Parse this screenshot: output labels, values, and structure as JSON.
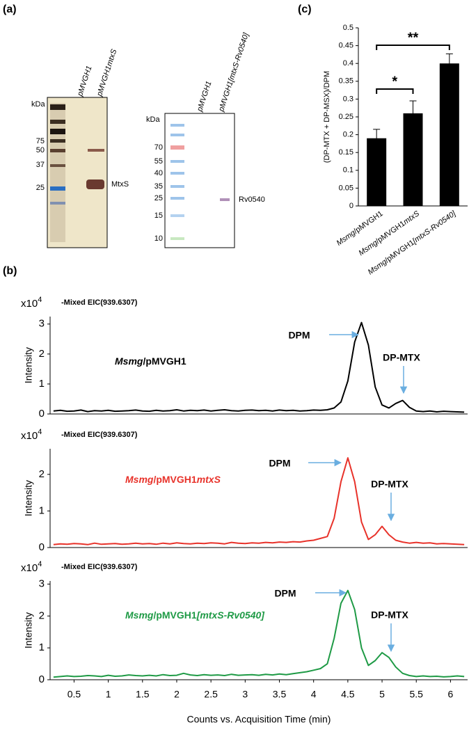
{
  "panel_labels": [
    "(a)",
    "(b)",
    "(c)"
  ],
  "gels": [
    {
      "marker_unit": "kDa",
      "markers": [
        75,
        50,
        37,
        25
      ],
      "lanes": [
        "pMVGH1",
        "pMVGH1mtxS"
      ],
      "band_label": "MtxS"
    },
    {
      "marker_unit": "kDa",
      "markers": [
        70,
        55,
        40,
        35,
        25,
        15,
        10
      ],
      "lanes": [
        "pMVGH1",
        "pMVGH1[mtxS-Rv0540]"
      ],
      "band_label": "Rv0540"
    }
  ],
  "chart_data": [
    {
      "type": "bar",
      "y_label": "(DP-MTX + DP-MSX)/DPM",
      "categories": [
        [
          {
            "text": "Msmg",
            "italic": true
          },
          {
            "text": "/pMVGH1",
            "italic": false
          }
        ],
        [
          {
            "text": "Msmg",
            "italic": true
          },
          {
            "text": "/pMVGH1",
            "italic": false
          },
          {
            "text": "mtxS",
            "italic": true
          }
        ],
        [
          {
            "text": "Msmg",
            "italic": true
          },
          {
            "text": "/pMVGH1",
            "italic": false
          },
          {
            "text": "[mtxS-Rv0540]",
            "italic": true
          }
        ]
      ],
      "values": [
        0.19,
        0.26,
        0.4
      ],
      "errors": [
        0.025,
        0.035,
        0.027
      ],
      "color": "#000000",
      "annotations": [
        "*",
        "**"
      ],
      "ylim": [
        0,
        0.5
      ],
      "yticks": [
        0,
        0.05,
        0.1,
        0.15,
        0.2,
        0.25,
        0.3,
        0.35,
        0.4,
        0.45,
        0.5
      ]
    },
    {
      "type": "line",
      "subtitle": "-Mixed EIC(939.6307)",
      "y_label": "Intensity",
      "y_scale_label": "x10",
      "y_scale_exponent": "4",
      "sample_label": [
        {
          "text": "Msmg",
          "italic": true
        },
        {
          "text": "/pMVGH1",
          "italic": false
        }
      ],
      "annotations": [
        "DPM",
        "DP-MTX"
      ],
      "color": "#000000",
      "x": [
        0.2,
        0.3,
        0.4,
        0.5,
        0.6,
        0.7,
        0.8,
        0.9,
        1.0,
        1.1,
        1.2,
        1.3,
        1.4,
        1.5,
        1.6,
        1.7,
        1.8,
        1.9,
        2.0,
        2.1,
        2.2,
        2.3,
        2.4,
        2.5,
        2.6,
        2.7,
        2.8,
        2.9,
        3.0,
        3.1,
        3.2,
        3.3,
        3.4,
        3.5,
        3.6,
        3.7,
        3.8,
        3.9,
        4.0,
        4.1,
        4.2,
        4.3,
        4.4,
        4.5,
        4.6,
        4.7,
        4.8,
        4.9,
        5.0,
        5.1,
        5.2,
        5.3,
        5.4,
        5.5,
        5.6,
        5.7,
        5.8,
        5.9,
        6.0,
        6.1,
        6.2
      ],
      "values": [
        0.1,
        0.12,
        0.09,
        0.1,
        0.13,
        0.08,
        0.11,
        0.1,
        0.12,
        0.09,
        0.1,
        0.11,
        0.13,
        0.1,
        0.09,
        0.12,
        0.1,
        0.11,
        0.14,
        0.1,
        0.12,
        0.11,
        0.13,
        0.1,
        0.12,
        0.14,
        0.11,
        0.1,
        0.12,
        0.13,
        0.11,
        0.12,
        0.1,
        0.13,
        0.11,
        0.12,
        0.1,
        0.11,
        0.13,
        0.12,
        0.14,
        0.2,
        0.4,
        1.1,
        2.4,
        3.05,
        2.3,
        0.9,
        0.3,
        0.2,
        0.35,
        0.45,
        0.22,
        0.1,
        0.08,
        0.1,
        0.07,
        0.09,
        0.08,
        0.07,
        0.06
      ],
      "xlim": [
        0.15,
        6.25
      ],
      "ylim": [
        0,
        3.25
      ],
      "yticks": [
        0,
        1,
        2,
        3
      ]
    },
    {
      "type": "line",
      "subtitle": "-Mixed EIC(939.6307)",
      "y_label": "Intensity",
      "y_scale_label": "x10",
      "y_scale_exponent": "4",
      "sample_label": [
        {
          "text": "Msmg",
          "italic": true
        },
        {
          "text": "/pMVGH1",
          "italic": false
        },
        {
          "text": "mtxS",
          "italic": true
        }
      ],
      "annotations": [
        "DPM",
        "DP-MTX"
      ],
      "color": "#e8322a",
      "x": [
        0.2,
        0.3,
        0.4,
        0.5,
        0.6,
        0.7,
        0.8,
        0.9,
        1.0,
        1.1,
        1.2,
        1.3,
        1.4,
        1.5,
        1.6,
        1.7,
        1.8,
        1.9,
        2.0,
        2.1,
        2.2,
        2.3,
        2.4,
        2.5,
        2.6,
        2.7,
        2.8,
        2.9,
        3.0,
        3.1,
        3.2,
        3.3,
        3.4,
        3.5,
        3.6,
        3.7,
        3.8,
        3.9,
        4.0,
        4.1,
        4.2,
        4.3,
        4.4,
        4.5,
        4.6,
        4.7,
        4.8,
        4.9,
        5.0,
        5.1,
        5.2,
        5.3,
        5.4,
        5.5,
        5.6,
        5.7,
        5.8,
        5.9,
        6.0,
        6.1,
        6.2
      ],
      "values": [
        0.08,
        0.1,
        0.09,
        0.11,
        0.1,
        0.08,
        0.12,
        0.09,
        0.1,
        0.11,
        0.09,
        0.1,
        0.12,
        0.1,
        0.11,
        0.09,
        0.12,
        0.1,
        0.13,
        0.11,
        0.1,
        0.12,
        0.11,
        0.13,
        0.12,
        0.1,
        0.14,
        0.12,
        0.11,
        0.13,
        0.12,
        0.14,
        0.13,
        0.15,
        0.14,
        0.16,
        0.15,
        0.18,
        0.2,
        0.25,
        0.3,
        0.8,
        1.8,
        2.45,
        1.8,
        0.7,
        0.22,
        0.35,
        0.58,
        0.35,
        0.2,
        0.15,
        0.12,
        0.14,
        0.12,
        0.13,
        0.1,
        0.11,
        0.1,
        0.09,
        0.08
      ],
      "xlim": [
        0.15,
        6.25
      ],
      "ylim": [
        0,
        2.7
      ],
      "yticks": [
        0,
        1,
        2
      ]
    },
    {
      "type": "line",
      "subtitle": "-Mixed EIC(939.6307)",
      "y_label": "Intensity",
      "y_scale_label": "x10",
      "y_scale_exponent": "4",
      "x_label": "Counts vs. Acquisition Time (min)",
      "sample_label": [
        {
          "text": "Msmg",
          "italic": true
        },
        {
          "text": "/pMVGH1",
          "italic": false
        },
        {
          "text": "[mtxS-Rv0540]",
          "italic": true
        }
      ],
      "annotations": [
        "DPM",
        "DP-MTX"
      ],
      "color": "#1e9a45",
      "x": [
        0.2,
        0.3,
        0.4,
        0.5,
        0.6,
        0.7,
        0.8,
        0.9,
        1.0,
        1.1,
        1.2,
        1.3,
        1.4,
        1.5,
        1.6,
        1.7,
        1.8,
        1.9,
        2.0,
        2.1,
        2.2,
        2.3,
        2.4,
        2.5,
        2.6,
        2.7,
        2.8,
        2.9,
        3.0,
        3.1,
        3.2,
        3.3,
        3.4,
        3.5,
        3.6,
        3.7,
        3.8,
        3.9,
        4.0,
        4.1,
        4.2,
        4.3,
        4.4,
        4.5,
        4.6,
        4.7,
        4.8,
        4.9,
        5.0,
        5.1,
        5.2,
        5.3,
        5.4,
        5.5,
        5.6,
        5.7,
        5.8,
        5.9,
        6.0,
        6.1,
        6.2
      ],
      "values": [
        0.08,
        0.1,
        0.12,
        0.1,
        0.11,
        0.13,
        0.12,
        0.1,
        0.14,
        0.11,
        0.12,
        0.15,
        0.13,
        0.12,
        0.14,
        0.12,
        0.16,
        0.13,
        0.14,
        0.2,
        0.15,
        0.13,
        0.16,
        0.14,
        0.15,
        0.13,
        0.17,
        0.14,
        0.15,
        0.16,
        0.14,
        0.17,
        0.15,
        0.18,
        0.16,
        0.19,
        0.22,
        0.25,
        0.3,
        0.35,
        0.5,
        1.3,
        2.4,
        2.8,
        2.2,
        1.0,
        0.45,
        0.6,
        0.85,
        0.7,
        0.4,
        0.2,
        0.13,
        0.1,
        0.12,
        0.1,
        0.11,
        0.09,
        0.1,
        0.12,
        0.1
      ],
      "xlim": [
        0.15,
        6.25
      ],
      "ylim": [
        0,
        3.1
      ],
      "xticks": [
        0.5,
        1,
        1.5,
        2,
        2.5,
        3,
        3.5,
        4,
        4.5,
        5,
        5.5,
        6
      ],
      "yticks": [
        0,
        1,
        2,
        3
      ]
    }
  ]
}
